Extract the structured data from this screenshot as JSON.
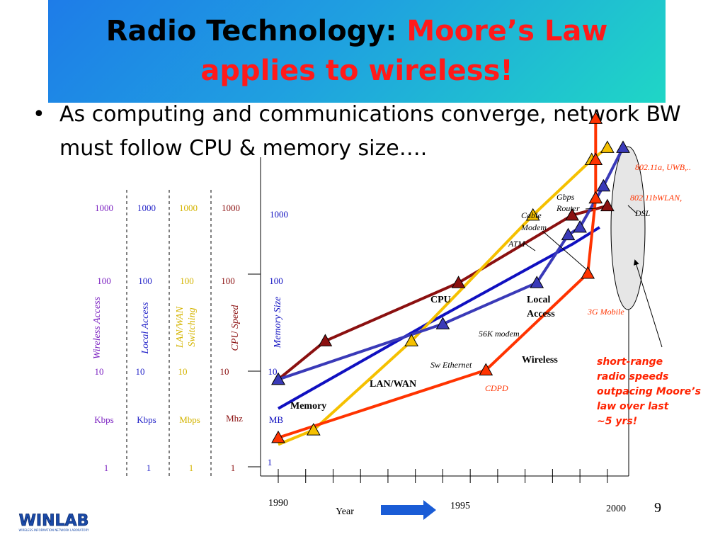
{
  "slide": {
    "title_part1": "Radio Technology:",
    "title_part2": "Moore’s Law",
    "title_part3": "applies to wireless!",
    "bullet": "As computing and communications converge, network BW must follow CPU & memory size….",
    "page_number": "9",
    "logo_text": "WINLAB",
    "logo_subtext": "WIRELESS INFORMATION NETWORK LABORATORY",
    "callout": "short-range radio speeds outpacing Moore’s law over last ~5 yrs!"
  },
  "colors": {
    "wireless": "#7a1fc0",
    "local": "#2323c8",
    "switching": "#d4b400",
    "cpu": "#8b1010",
    "memory": "#1010c0",
    "red_series": "#ff3300",
    "accent_red": "#ff2200"
  },
  "chart_data": {
    "type": "line",
    "xlabel": "Year",
    "x_ticks": [
      "1990",
      "1995",
      "2000"
    ],
    "y_scale": "log",
    "y_ticks": [
      "1",
      "10",
      "100",
      "1000"
    ],
    "axes": [
      {
        "name": "Wireless Access",
        "unit": "Kbps",
        "ticks": [
          "1000",
          "100",
          "10",
          "1"
        ]
      },
      {
        "name": "Local Access",
        "unit": "Kbps",
        "ticks": [
          "1000",
          "100",
          "10",
          "1"
        ]
      },
      {
        "name": "LAN/WAN Switching",
        "unit": "Mbps",
        "ticks": [
          "1000",
          "100",
          "10",
          "1"
        ]
      },
      {
        "name": "CPU Speed",
        "unit": "Mhz",
        "ticks": [
          "1000",
          "100",
          "10",
          "1"
        ]
      },
      {
        "name": "Memory Size",
        "unit": "MB",
        "ticks": [
          "1000",
          "100",
          "10",
          "1"
        ]
      }
    ],
    "series": [
      {
        "name": "CPU",
        "color": "#8b1010",
        "marker": true,
        "points": [
          [
            1990.0,
            8
          ],
          [
            1991.2,
            20
          ],
          [
            1994.6,
            80
          ],
          [
            1997.5,
            400
          ],
          [
            1998.4,
            500
          ]
        ],
        "annotations": []
      },
      {
        "name": "Memory",
        "color": "#1010c0",
        "marker": false,
        "points": [
          [
            1990.0,
            4
          ],
          [
            1993.8,
            30
          ],
          [
            1997.5,
            200
          ],
          [
            1998.2,
            300
          ]
        ],
        "annotations": []
      },
      {
        "name": "LAN/WAN",
        "color": "#f5c000",
        "marker": true,
        "points": [
          [
            1990.0,
            1.7
          ],
          [
            1990.9,
            2.4
          ],
          [
            1993.4,
            20
          ],
          [
            1996.5,
            400
          ],
          [
            1998.0,
            1500
          ],
          [
            1998.4,
            2000
          ]
        ],
        "annotations": [
          "",
          "",
          "Sw Ethernet",
          "ATM",
          "Gbps Router",
          ""
        ]
      },
      {
        "name": "Local Access",
        "color": "#3a3ab8",
        "marker": true,
        "points": [
          [
            1990.0,
            8
          ],
          [
            1994.2,
            30
          ],
          [
            1996.6,
            80
          ],
          [
            1997.4,
            250
          ],
          [
            1997.7,
            300
          ],
          [
            1998.3,
            800
          ],
          [
            1998.8,
            2000
          ]
        ],
        "annotations": [
          "",
          "56K modem",
          "",
          "Cable Modem",
          "",
          "DSL",
          ""
        ]
      },
      {
        "name": "Wireless",
        "color": "#ff3300",
        "marker": true,
        "points": [
          [
            1990.0,
            2
          ],
          [
            1995.3,
            10
          ],
          [
            1997.9,
            100
          ],
          [
            1998.1,
            600
          ],
          [
            1998.1,
            1500
          ],
          [
            1998.1,
            4000
          ]
        ],
        "annotations": [
          "",
          "CDPD",
          "3G Mobile",
          "802.11bWLAN,",
          "802.11a, UWB,..",
          ""
        ]
      }
    ]
  }
}
